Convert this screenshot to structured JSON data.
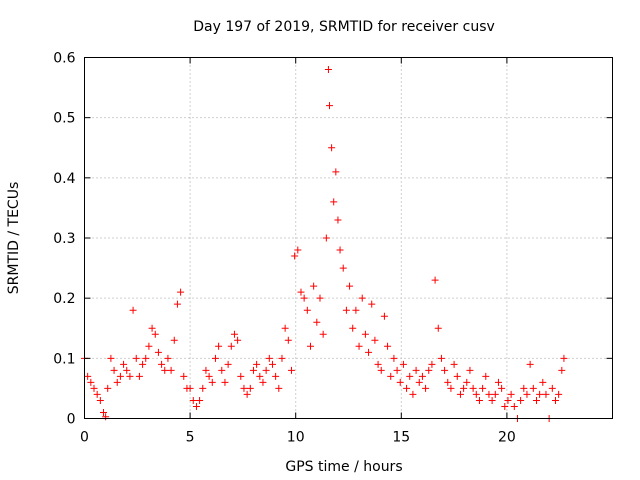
{
  "chart_data": {
    "type": "scatter",
    "title": "Day 197 of 2019, SRMTID for receiver cusv",
    "xlabel": "GPS time / hours",
    "ylabel": "SRMTID / TECUs",
    "xlim": [
      0,
      25
    ],
    "ylim": [
      0,
      0.6
    ],
    "xticks": [
      0,
      5,
      10,
      15,
      20
    ],
    "xtick_labels": [
      "0",
      "5",
      "10",
      "15",
      "20"
    ],
    "yticks": [
      0,
      0.1,
      0.2,
      0.3,
      0.4,
      0.5,
      0.6
    ],
    "ytick_labels": [
      "0",
      "0.1",
      "0.2",
      "0.3",
      "0.4",
      "0.5",
      "0.6"
    ],
    "grid": true,
    "marker": "+",
    "series": [
      {
        "name": "SRMTID",
        "color": "#ff0000",
        "x": [
          0.0,
          0.15,
          0.3,
          0.45,
          0.6,
          0.75,
          0.9,
          1.0,
          1.1,
          1.25,
          1.4,
          1.55,
          1.7,
          1.85,
          2.0,
          2.15,
          2.3,
          2.45,
          2.6,
          2.75,
          2.9,
          3.05,
          3.2,
          3.35,
          3.5,
          3.65,
          3.8,
          3.95,
          4.1,
          4.25,
          4.4,
          4.55,
          4.7,
          4.85,
          5.0,
          5.15,
          5.3,
          5.45,
          5.6,
          5.75,
          5.9,
          6.05,
          6.2,
          6.35,
          6.5,
          6.65,
          6.8,
          6.95,
          7.1,
          7.25,
          7.4,
          7.55,
          7.7,
          7.85,
          8.0,
          8.15,
          8.3,
          8.45,
          8.6,
          8.75,
          8.9,
          9.05,
          9.2,
          9.35,
          9.5,
          9.65,
          9.8,
          9.95,
          10.1,
          10.25,
          10.4,
          10.55,
          10.7,
          10.85,
          11.0,
          11.15,
          11.3,
          11.45,
          11.55,
          11.6,
          11.7,
          11.8,
          11.9,
          12.0,
          12.1,
          12.25,
          12.4,
          12.55,
          12.7,
          12.85,
          13.0,
          13.15,
          13.3,
          13.45,
          13.6,
          13.75,
          13.9,
          14.05,
          14.2,
          14.35,
          14.5,
          14.65,
          14.8,
          14.95,
          15.1,
          15.25,
          15.4,
          15.55,
          15.7,
          15.85,
          16.0,
          16.15,
          16.3,
          16.45,
          16.6,
          16.75,
          16.9,
          17.05,
          17.2,
          17.35,
          17.5,
          17.65,
          17.8,
          17.95,
          18.1,
          18.25,
          18.4,
          18.55,
          18.7,
          18.85,
          19.0,
          19.15,
          19.3,
          19.45,
          19.6,
          19.75,
          19.9,
          20.05,
          20.2,
          20.35,
          20.5,
          20.65,
          20.8,
          20.95,
          21.1,
          21.25,
          21.4,
          21.55,
          21.7,
          21.85,
          22.0,
          22.15,
          22.3,
          22.45,
          22.6,
          22.7
        ],
        "y": [
          0.1,
          0.07,
          0.06,
          0.05,
          0.04,
          0.03,
          0.01,
          0.003,
          0.05,
          0.1,
          0.08,
          0.06,
          0.07,
          0.09,
          0.08,
          0.07,
          0.18,
          0.1,
          0.07,
          0.09,
          0.1,
          0.12,
          0.15,
          0.14,
          0.11,
          0.09,
          0.08,
          0.1,
          0.08,
          0.13,
          0.19,
          0.21,
          0.07,
          0.05,
          0.05,
          0.03,
          0.02,
          0.03,
          0.05,
          0.08,
          0.07,
          0.06,
          0.1,
          0.12,
          0.08,
          0.06,
          0.09,
          0.12,
          0.14,
          0.13,
          0.07,
          0.05,
          0.04,
          0.05,
          0.08,
          0.09,
          0.07,
          0.06,
          0.08,
          0.1,
          0.09,
          0.07,
          0.05,
          0.1,
          0.15,
          0.13,
          0.08,
          0.27,
          0.28,
          0.21,
          0.2,
          0.18,
          0.12,
          0.22,
          0.16,
          0.2,
          0.14,
          0.3,
          0.58,
          0.52,
          0.45,
          0.36,
          0.41,
          0.33,
          0.28,
          0.25,
          0.18,
          0.22,
          0.15,
          0.18,
          0.12,
          0.2,
          0.14,
          0.11,
          0.19,
          0.13,
          0.09,
          0.08,
          0.17,
          0.12,
          0.07,
          0.1,
          0.08,
          0.06,
          0.09,
          0.05,
          0.07,
          0.04,
          0.08,
          0.06,
          0.07,
          0.05,
          0.08,
          0.09,
          0.23,
          0.15,
          0.1,
          0.08,
          0.06,
          0.05,
          0.09,
          0.07,
          0.04,
          0.05,
          0.06,
          0.08,
          0.05,
          0.04,
          0.03,
          0.05,
          0.07,
          0.04,
          0.03,
          0.04,
          0.06,
          0.05,
          0.02,
          0.03,
          0.04,
          0.02,
          0.0,
          0.03,
          0.05,
          0.04,
          0.09,
          0.05,
          0.03,
          0.04,
          0.06,
          0.04,
          0.0,
          0.05,
          0.03,
          0.04,
          0.08,
          0.1
        ]
      }
    ]
  }
}
